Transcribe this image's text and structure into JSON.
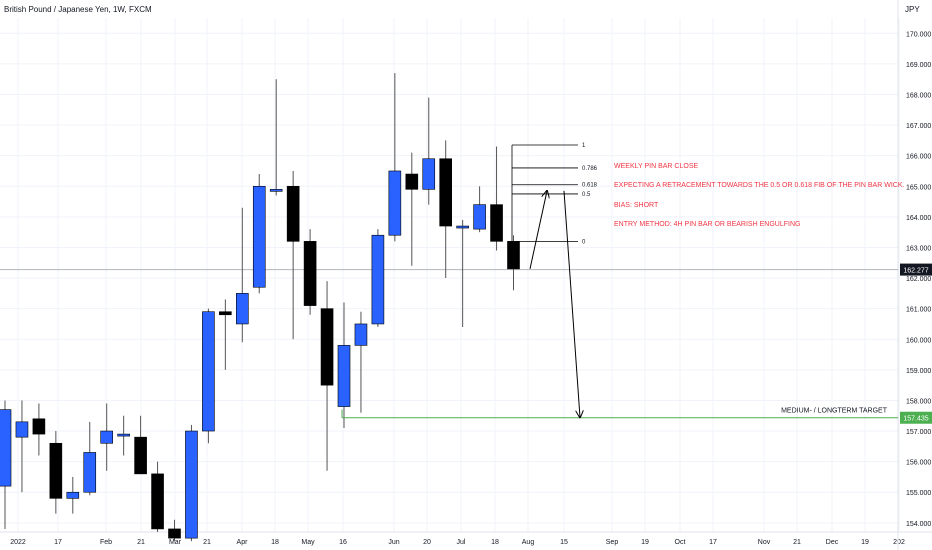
{
  "header": {
    "symbol_title": "British Pound / Japanese Yen, 1W, FXCM",
    "currency": "JPY"
  },
  "colors": {
    "bull": "#2962ff",
    "bear": "#000000",
    "annotation": "#f23645",
    "target": "#4caf50",
    "price_line": "#b2b5be",
    "grid": "#f0f3fa"
  },
  "chart_data": {
    "type": "candlestick",
    "title": "British Pound / Japanese Yen, 1W, FXCM",
    "ylabel": "JPY",
    "ylim": [
      153.7,
      170.5
    ],
    "grid": true,
    "y_ticks": [
      "154.000",
      "155.000",
      "156.000",
      "157.000",
      "158.000",
      "159.000",
      "160.000",
      "161.000",
      "162.000",
      "163.000",
      "164.000",
      "165.000",
      "166.000",
      "167.000",
      "168.000",
      "169.000",
      "170.000"
    ],
    "x_ticks": [
      "2022",
      "17",
      "Feb",
      "21",
      "Mar",
      "21",
      "Apr",
      "18",
      "May",
      "16",
      "Jun",
      "20",
      "Jul",
      "18",
      "Aug",
      "15",
      "Sep",
      "19",
      "Oct",
      "17",
      "Nov",
      "21",
      "Dec",
      "19",
      "202"
    ],
    "candles": [
      {
        "o": 155.2,
        "h": 158.0,
        "l": 153.8,
        "c": 157.7
      },
      {
        "o": 156.8,
        "h": 158.0,
        "l": 155.0,
        "c": 157.3
      },
      {
        "o": 157.4,
        "h": 157.9,
        "l": 156.2,
        "c": 156.9
      },
      {
        "o": 156.6,
        "h": 157.0,
        "l": 154.3,
        "c": 154.8
      },
      {
        "o": 154.8,
        "h": 155.5,
        "l": 154.3,
        "c": 155.0
      },
      {
        "o": 155.0,
        "h": 157.3,
        "l": 154.9,
        "c": 156.3
      },
      {
        "o": 156.6,
        "h": 157.9,
        "l": 155.7,
        "c": 157.0
      },
      {
        "o": 156.9,
        "h": 157.5,
        "l": 156.2,
        "c": 156.9
      },
      {
        "o": 156.8,
        "h": 157.5,
        "l": 155.6,
        "c": 155.6
      },
      {
        "o": 155.6,
        "h": 156.0,
        "l": 153.7,
        "c": 153.8
      },
      {
        "o": 153.8,
        "h": 154.1,
        "l": 153.4,
        "c": 153.5
      },
      {
        "o": 153.5,
        "h": 157.2,
        "l": 153.4,
        "c": 157.0
      },
      {
        "o": 157.0,
        "h": 161.0,
        "l": 156.6,
        "c": 160.9
      },
      {
        "o": 160.9,
        "h": 161.3,
        "l": 159.0,
        "c": 160.8
      },
      {
        "o": 160.5,
        "h": 164.3,
        "l": 159.9,
        "c": 161.5
      },
      {
        "o": 161.7,
        "h": 165.4,
        "l": 161.5,
        "c": 165.0
      },
      {
        "o": 164.9,
        "h": 168.5,
        "l": 164.7,
        "c": 164.9
      },
      {
        "o": 165.0,
        "h": 165.5,
        "l": 160.0,
        "c": 163.2
      },
      {
        "o": 163.2,
        "h": 163.6,
        "l": 160.8,
        "c": 161.1
      },
      {
        "o": 161.0,
        "h": 161.9,
        "l": 155.7,
        "c": 158.5
      },
      {
        "o": 157.8,
        "h": 161.2,
        "l": 157.1,
        "c": 159.8
      },
      {
        "o": 159.8,
        "h": 160.9,
        "l": 157.6,
        "c": 160.5
      },
      {
        "o": 160.5,
        "h": 163.6,
        "l": 160.4,
        "c": 163.4
      },
      {
        "o": 163.4,
        "h": 168.7,
        "l": 163.2,
        "c": 165.5
      },
      {
        "o": 165.4,
        "h": 166.1,
        "l": 162.4,
        "c": 164.9
      },
      {
        "o": 164.9,
        "h": 167.9,
        "l": 164.4,
        "c": 165.9
      },
      {
        "o": 165.9,
        "h": 166.5,
        "l": 162.0,
        "c": 163.7
      },
      {
        "o": 163.7,
        "h": 163.9,
        "l": 160.4,
        "c": 163.7
      },
      {
        "o": 163.6,
        "h": 165.0,
        "l": 163.5,
        "c": 164.4
      },
      {
        "o": 164.4,
        "h": 166.3,
        "l": 162.9,
        "c": 163.2
      },
      {
        "o": 163.2,
        "h": 163.4,
        "l": 161.6,
        "c": 162.3
      }
    ],
    "current_price": {
      "value": 162.277,
      "label": "162.277"
    },
    "target": {
      "value": 157.435,
      "label": "157.435",
      "text": "MEDIUM- / LONGTERM TARGET"
    },
    "fib_levels": [
      {
        "label": "1",
        "value": 166.35
      },
      {
        "label": "0.786",
        "value": 165.6
      },
      {
        "label": "0.618",
        "value": 165.05
      },
      {
        "label": "0.5",
        "value": 164.75
      },
      {
        "label": "0",
        "value": 163.2
      }
    ],
    "annotations": [
      "WEEKLY PIN BAR CLOSE",
      "EXPECTING A RETRACEMENT TOWARDS THE 0.5 OR 0.618 FIB OF THE PIN BAR WICK.",
      "BIAS: SHORT",
      "ENTRY METHOD: 4H PIN BAR OR BEARISH ENGULFING"
    ]
  }
}
